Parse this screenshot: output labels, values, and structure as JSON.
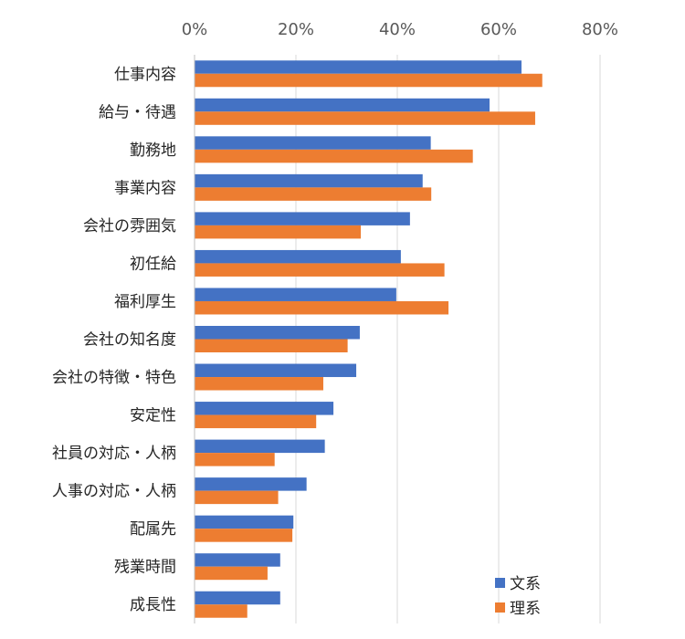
{
  "chart_data": {
    "type": "bar",
    "orientation": "horizontal",
    "x_axis_position": "top",
    "xlim": [
      0,
      80
    ],
    "x_ticks": [
      "0%",
      "20%",
      "40%",
      "60%",
      "80%"
    ],
    "grid": "vertical",
    "legend_placement": "bottom-right",
    "categories": [
      "仕事内容",
      "給与・待遇",
      "勤務地",
      "事業内容",
      "会社の雰囲気",
      "初任給",
      "福利厚生",
      "会社の知名度",
      "会社の特徴・特色",
      "安定性",
      "社員の対応・人柄",
      "人事の対応・人柄",
      "配属先",
      "残業時間",
      "成長性"
    ],
    "series": [
      {
        "name": "文系",
        "color": "#4472C4",
        "values": [
          64.5,
          58.2,
          46.6,
          45.0,
          42.5,
          40.7,
          39.8,
          32.6,
          31.9,
          27.4,
          25.7,
          22.1,
          19.5,
          16.9,
          16.9
        ]
      },
      {
        "name": "理系",
        "color": "#ED7D31",
        "values": [
          68.6,
          67.2,
          54.9,
          46.7,
          32.8,
          49.3,
          50.1,
          30.2,
          25.4,
          24.0,
          15.8,
          16.5,
          19.3,
          14.4,
          10.4
        ]
      }
    ]
  }
}
